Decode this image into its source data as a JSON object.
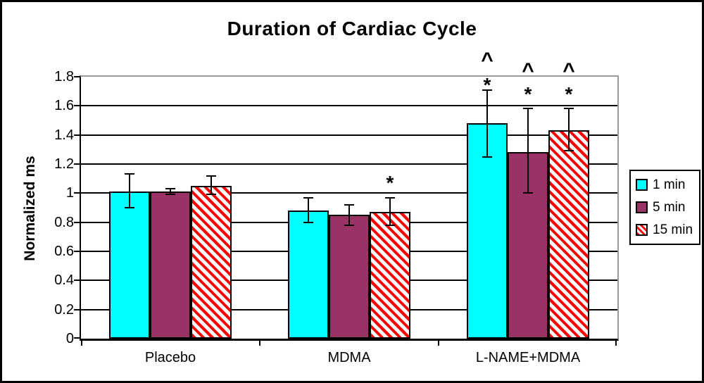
{
  "chart_data": {
    "type": "bar",
    "title": "Duration of Cardiac Cycle",
    "xlabel": "",
    "ylabel": "Normalized ms",
    "ylim": [
      0,
      1.8
    ],
    "grid": true,
    "gridline_step": 0.2,
    "yticks": [
      0,
      0.2,
      0.4,
      0.6,
      0.8,
      1.0,
      1.2,
      1.4,
      1.6,
      1.8
    ],
    "ytick_labels": [
      "0",
      "0.2",
      "0.4",
      "0.6",
      "0.8",
      "1",
      "1.2",
      "1.4",
      "1.6",
      "1.8"
    ],
    "categories": [
      "Placebo",
      "MDMA",
      "L-NAME+MDMA"
    ],
    "series": [
      {
        "name": "1 min",
        "color": "#00ffff",
        "pattern": "solid",
        "values": [
          1.01,
          0.88,
          1.48
        ],
        "error_high": [
          1.13,
          0.97,
          1.71
        ],
        "error_low": [
          0.9,
          0.8,
          1.25
        ]
      },
      {
        "name": "5 min",
        "color": "#993366",
        "pattern": "solid",
        "values": [
          1.01,
          0.85,
          1.28
        ],
        "error_high": [
          1.03,
          0.92,
          1.58
        ],
        "error_low": [
          0.99,
          0.78,
          1.0
        ]
      },
      {
        "name": "15 min",
        "color": "#ff0000",
        "pattern": "diagonal-stripes-red-on-white",
        "values": [
          1.05,
          0.87,
          1.43
        ],
        "error_high": [
          1.12,
          0.97,
          1.58
        ],
        "error_low": [
          0.99,
          0.78,
          1.29
        ]
      }
    ],
    "annotations": [
      {
        "category_index": 1,
        "series_index": 2,
        "symbols": [
          {
            "glyph": "*",
            "y": 1.09
          }
        ]
      },
      {
        "category_index": 2,
        "series_index": 0,
        "symbols": [
          {
            "glyph": "*",
            "y": 1.76
          },
          {
            "glyph": "^",
            "y": 1.93
          }
        ]
      },
      {
        "category_index": 2,
        "series_index": 1,
        "symbols": [
          {
            "glyph": "*",
            "y": 1.7
          },
          {
            "glyph": "^",
            "y": 1.86
          }
        ]
      },
      {
        "category_index": 2,
        "series_index": 2,
        "symbols": [
          {
            "glyph": "*",
            "y": 1.7
          },
          {
            "glyph": "^",
            "y": 1.86
          }
        ]
      }
    ],
    "legend": {
      "position": "right",
      "entries": [
        "1 min",
        "5 min",
        "15 min"
      ]
    }
  }
}
